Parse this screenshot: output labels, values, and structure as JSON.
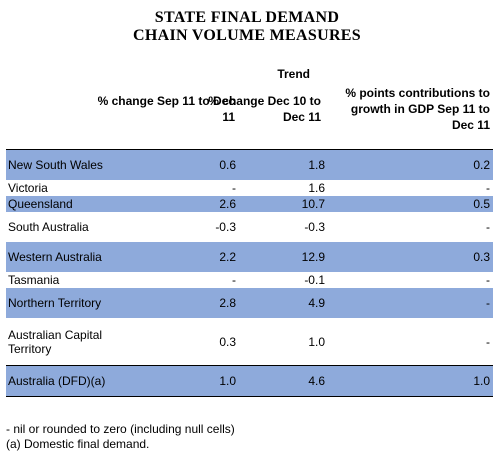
{
  "title": {
    "line1": "STATE FINAL DEMAND",
    "line2": "CHAIN VOLUME MEASURES"
  },
  "header": {
    "group": "Trend",
    "col1": "% change Sep 11 to Dec 11",
    "col2": "% change Dec 10 to Dec 11",
    "col3": "% points contributions to growth in GDP Sep 11 to Dec 11"
  },
  "rows": [
    {
      "state": "New South Wales",
      "c1": "0.6",
      "c2": "1.8",
      "c3": "0.2",
      "shaded": true
    },
    {
      "state": "Victoria",
      "c1": "-",
      "c2": "1.6",
      "c3": "-",
      "shaded": false
    },
    {
      "state": "Queensland",
      "c1": "2.6",
      "c2": "10.7",
      "c3": "0.5",
      "shaded": true
    },
    {
      "state": "South Australia",
      "c1": "-0.3",
      "c2": "-0.3",
      "c3": "-",
      "shaded": false
    },
    {
      "state": "Western Australia",
      "c1": "2.2",
      "c2": "12.9",
      "c3": "0.3",
      "shaded": true
    },
    {
      "state": "Tasmania",
      "c1": "-",
      "c2": "-0.1",
      "c3": "-",
      "shaded": false
    },
    {
      "state": "Northern Territory",
      "c1": "2.8",
      "c2": "4.9",
      "c3": "-",
      "shaded": true
    },
    {
      "state": "Australian Capital Territory",
      "c1": "0.3",
      "c2": "1.0",
      "c3": "-",
      "shaded": false
    },
    {
      "state": "Australia (DFD)(a)",
      "c1": "1.0",
      "c2": "4.6",
      "c3": "1.0",
      "shaded": true
    }
  ],
  "notes": {
    "nil": "- nil or rounded to zero (including null cells)",
    "a": "(a) Domestic final demand."
  },
  "colors": {
    "row_shade": "#8eaadb",
    "text": "#000000"
  }
}
